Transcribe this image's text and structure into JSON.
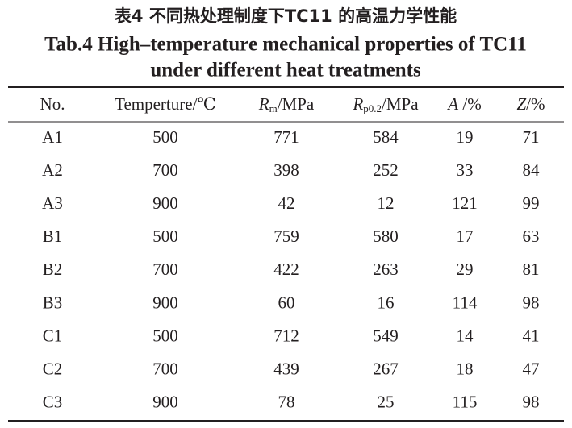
{
  "title": {
    "chinese": "表4 不同热处理制度下TC11 的高温力学性能",
    "english_line1": "Tab.4 High–temperature mechanical properties of TC11",
    "english_line2": "under different heat treatments"
  },
  "table": {
    "header": [
      {
        "text": "No."
      },
      {
        "text": "Temperture/℃"
      },
      {
        "symbol": "R",
        "sub": "m",
        "unit": "/MPa"
      },
      {
        "symbol": "R",
        "sub": "p0.2",
        "unit": "/MPa"
      },
      {
        "symbol": "A",
        "unit": " /%"
      },
      {
        "symbol": "Z",
        "unit": "/%"
      }
    ],
    "rows": [
      [
        "A1",
        500,
        771,
        584,
        19,
        71
      ],
      [
        "A2",
        700,
        398,
        252,
        33,
        84
      ],
      [
        "A3",
        900,
        42,
        12,
        121,
        99
      ],
      [
        "B1",
        500,
        759,
        580,
        17,
        63
      ],
      [
        "B2",
        700,
        422,
        263,
        29,
        81
      ],
      [
        "B3",
        900,
        60,
        16,
        114,
        98
      ],
      [
        "C1",
        500,
        712,
        549,
        14,
        41
      ],
      [
        "C2",
        700,
        439,
        267,
        18,
        47
      ],
      [
        "C3",
        900,
        78,
        25,
        115,
        98
      ]
    ]
  }
}
